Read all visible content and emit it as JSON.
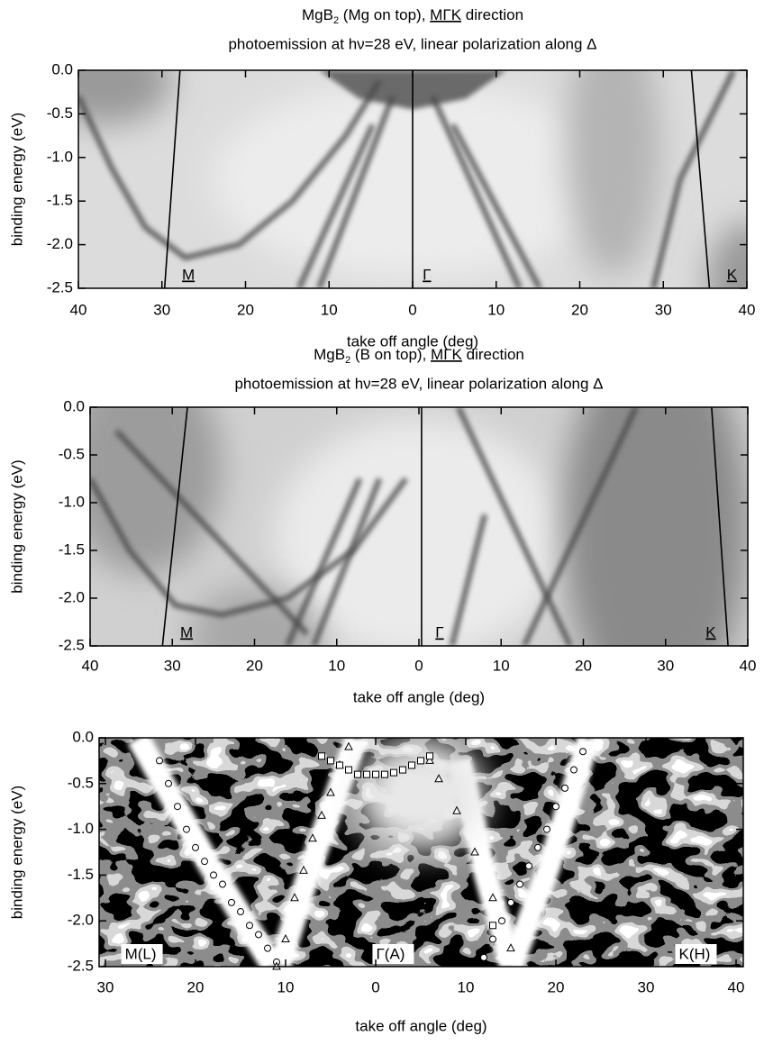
{
  "chart_data": [
    {
      "type": "heatmap",
      "title": {
        "text": "MgB",
        "sub": "2",
        "rest": " (Mg on top), ",
        "direction": "MΓK",
        "tail": " direction"
      },
      "subtitle": "photoemission at hν=28 eV, linear polarization along Δ",
      "xlabel": "take off angle (deg)",
      "ylabel": "binding energy (eV)",
      "xlim": [
        -40,
        40
      ],
      "ylim": [
        -2.5,
        0
      ],
      "xticks": [
        {
          "value": -40,
          "label": "40"
        },
        {
          "value": -30,
          "label": "30"
        },
        {
          "value": -20,
          "label": "20"
        },
        {
          "value": -10,
          "label": "10"
        },
        0,
        10,
        20,
        30,
        40
      ],
      "yticks": [
        {
          "value": 0,
          "label": "0.0"
        },
        -0.5,
        {
          "value": -1,
          "label": "-1.0"
        },
        -1.5,
        {
          "value": -2,
          "label": "-2.0"
        },
        -2.5
      ],
      "annotations": [
        "M",
        "Γ",
        "K"
      ]
    },
    {
      "type": "heatmap",
      "title": {
        "text": "MgB",
        "sub": "2",
        "rest": " (B on top), ",
        "direction": "MΓK",
        "tail": " direction"
      },
      "subtitle": "photoemission at hν=28 eV, linear polarization along Δ",
      "xlabel": "take off angle (deg)",
      "ylabel": "binding energy (eV)",
      "xlim": [
        -40,
        40
      ],
      "ylim": [
        -2.5,
        0
      ],
      "xticks": [
        {
          "value": -40,
          "label": "40"
        },
        {
          "value": -30,
          "label": "30"
        },
        {
          "value": -20,
          "label": "20"
        },
        {
          "value": -10,
          "label": "10"
        },
        0,
        10,
        20,
        30,
        40
      ],
      "yticks": [
        {
          "value": 0,
          "label": "0.0"
        },
        -0.5,
        {
          "value": -1,
          "label": "-1.0"
        },
        -1.5,
        {
          "value": -2,
          "label": "-2.0"
        },
        -2.5
      ],
      "annotations": [
        "M",
        "Γ",
        "K"
      ]
    },
    {
      "type": "scatter",
      "xlabel": "take off angle (deg)",
      "ylabel": "binding energy (eV)",
      "xlim": [
        -30.7,
        40.8
      ],
      "ylim": [
        -2.5,
        0
      ],
      "xticks": [
        {
          "value": -30,
          "label": "30"
        },
        {
          "value": -20,
          "label": "20"
        },
        {
          "value": -10,
          "label": "10"
        },
        0,
        10,
        20,
        30,
        40
      ],
      "yticks": [
        {
          "value": 0,
          "label": "0.0"
        },
        -0.5,
        {
          "value": -1,
          "label": "-1.0"
        },
        -1.5,
        {
          "value": -2,
          "label": "-2.0"
        },
        -2.5
      ],
      "annotations": [
        "M(L)",
        "Γ(A)",
        "K(H)"
      ],
      "series": [
        {
          "marker": "circle",
          "color": "#ffffff",
          "x": [
            -24,
            -23,
            -22,
            -21,
            -20,
            -19,
            -18,
            -17,
            -16,
            -15,
            -14,
            -13,
            -12,
            -11,
            12,
            13,
            14,
            15,
            16,
            17,
            18,
            19,
            20,
            21,
            22,
            23
          ],
          "values": [
            -0.25,
            -0.5,
            -0.75,
            -1.0,
            -1.2,
            -1.35,
            -1.5,
            -1.6,
            -1.8,
            -1.9,
            -2.05,
            -2.15,
            -2.3,
            -2.45,
            -2.4,
            -2.2,
            -2.0,
            -1.8,
            -1.6,
            -1.4,
            -1.2,
            -1.0,
            -0.75,
            -0.55,
            -0.35,
            -0.15
          ]
        },
        {
          "marker": "triangle",
          "color": "#ffffff",
          "x": [
            -11,
            -10,
            -9,
            -8,
            -7,
            -6,
            -5,
            -4,
            -3,
            6,
            7,
            9,
            11,
            13,
            15
          ],
          "values": [
            -2.5,
            -2.2,
            -1.75,
            -1.45,
            -1.1,
            -0.85,
            -0.6,
            -0.3,
            -0.1,
            -0.25,
            -0.45,
            -0.8,
            -1.25,
            -1.75,
            -2.3
          ]
        },
        {
          "marker": "square",
          "color": "#ffffff",
          "x": [
            -6,
            -5,
            -4,
            -3,
            -2,
            -1,
            0,
            1,
            2,
            3,
            4,
            5,
            6,
            13
          ],
          "values": [
            -0.2,
            -0.25,
            -0.3,
            -0.35,
            -0.4,
            -0.4,
            -0.4,
            -0.4,
            -0.38,
            -0.35,
            -0.3,
            -0.25,
            -0.2,
            -2.05
          ]
        }
      ]
    }
  ]
}
